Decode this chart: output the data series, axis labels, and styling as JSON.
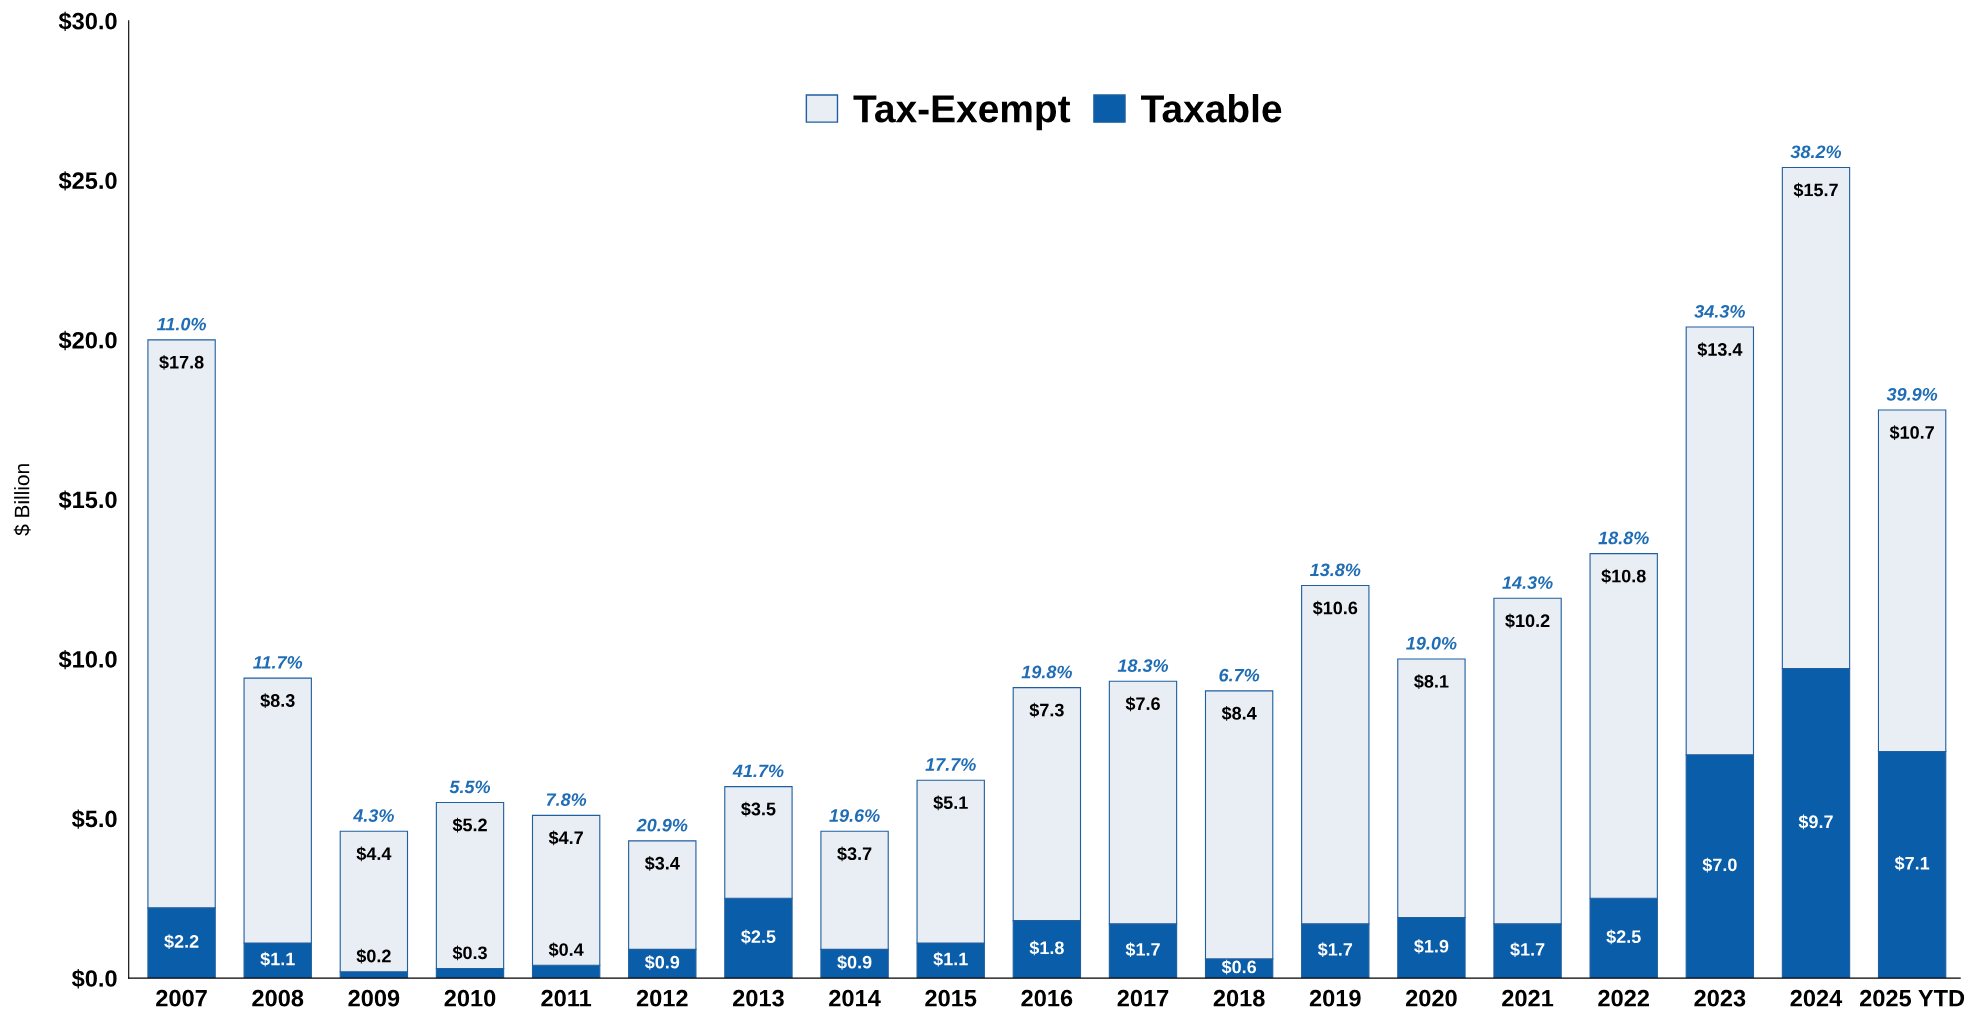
{
  "chart_data": {
    "type": "bar",
    "stacked": true,
    "ylabel": "$ Billion",
    "categories": [
      "2007",
      "2008",
      "2009",
      "2010",
      "2011",
      "2012",
      "2013",
      "2014",
      "2015",
      "2016",
      "2017",
      "2018",
      "2019",
      "2020",
      "2021",
      "2022",
      "2023",
      "2024",
      "2025 YTD"
    ],
    "series": [
      {
        "name": "Taxable",
        "color": "#0a5da8",
        "values": [
          2.2,
          1.1,
          0.2,
          0.3,
          0.4,
          0.9,
          2.5,
          0.9,
          1.1,
          1.8,
          1.7,
          0.6,
          1.7,
          1.9,
          1.7,
          2.5,
          7.0,
          9.7,
          7.1
        ],
        "value_labels": [
          "$2.2",
          "$1.1",
          "$0.2",
          "$0.3",
          "$0.4",
          "$0.9",
          "$2.5",
          "$0.9",
          "$1.1",
          "$1.8",
          "$1.7",
          "$0.6",
          "$1.7",
          "$1.9",
          "$1.7",
          "$2.5",
          "$7.0",
          "$9.7",
          "$7.1"
        ]
      },
      {
        "name": "Tax-Exempt",
        "color": "#e9eef4",
        "values": [
          17.8,
          8.3,
          4.4,
          5.2,
          4.7,
          3.4,
          3.5,
          3.7,
          5.1,
          7.3,
          7.6,
          8.4,
          10.6,
          8.1,
          10.2,
          10.8,
          13.4,
          15.7,
          10.7
        ],
        "value_labels": [
          "$17.8",
          "$8.3",
          "$4.4",
          "$5.2",
          "$4.7",
          "$3.4",
          "$3.5",
          "$3.7",
          "$5.1",
          "$7.3",
          "$7.6",
          "$8.4",
          "$10.6",
          "$8.1",
          "$10.2",
          "$10.8",
          "$13.4",
          "$15.7",
          "$10.7"
        ]
      }
    ],
    "ylim": [
      0,
      30
    ],
    "yticks": [
      {
        "value": 0,
        "label": "$0.0"
      },
      {
        "value": 5,
        "label": "$5.0"
      },
      {
        "value": 10,
        "label": "$10.0"
      },
      {
        "value": 15,
        "label": "$15.0"
      },
      {
        "value": 20,
        "label": "$20.0"
      },
      {
        "value": 25,
        "label": "$25.0"
      },
      {
        "value": 30,
        "label": "$30.0"
      }
    ],
    "grid": false,
    "legend": "top",
    "annotations": [
      {
        "text": "11.0%",
        "x": "2007",
        "y": 20.0
      },
      {
        "text": "11.7%",
        "x": "2008",
        "y": 9.4
      },
      {
        "text": "4.3%",
        "x": "2009",
        "y": 4.6
      },
      {
        "text": "5.5%",
        "x": "2010",
        "y": 5.5
      },
      {
        "text": "7.8%",
        "x": "2011",
        "y": 5.1
      },
      {
        "text": "20.9%",
        "x": "2012",
        "y": 4.3
      },
      {
        "text": "41.7%",
        "x": "2013",
        "y": 6.0
      },
      {
        "text": "19.6%",
        "x": "2014",
        "y": 4.6
      },
      {
        "text": "17.7%",
        "x": "2015",
        "y": 6.2
      },
      {
        "text": "19.8%",
        "x": "2016",
        "y": 9.1
      },
      {
        "text": "18.3%",
        "x": "2017",
        "y": 9.3
      },
      {
        "text": "6.7%",
        "x": "2018",
        "y": 9.0
      },
      {
        "text": "13.8%",
        "x": "2019",
        "y": 12.3
      },
      {
        "text": "19.0%",
        "x": "2020",
        "y": 10.0
      },
      {
        "text": "14.3%",
        "x": "2021",
        "y": 11.9
      },
      {
        "text": "18.8%",
        "x": "2022",
        "y": 13.3
      },
      {
        "text": "34.3%",
        "x": "2023",
        "y": 20.4
      },
      {
        "text": "38.2%",
        "x": "2024",
        "y": 25.4
      },
      {
        "text": "39.9%",
        "x": "2025 YTD",
        "y": 17.8
      }
    ]
  }
}
